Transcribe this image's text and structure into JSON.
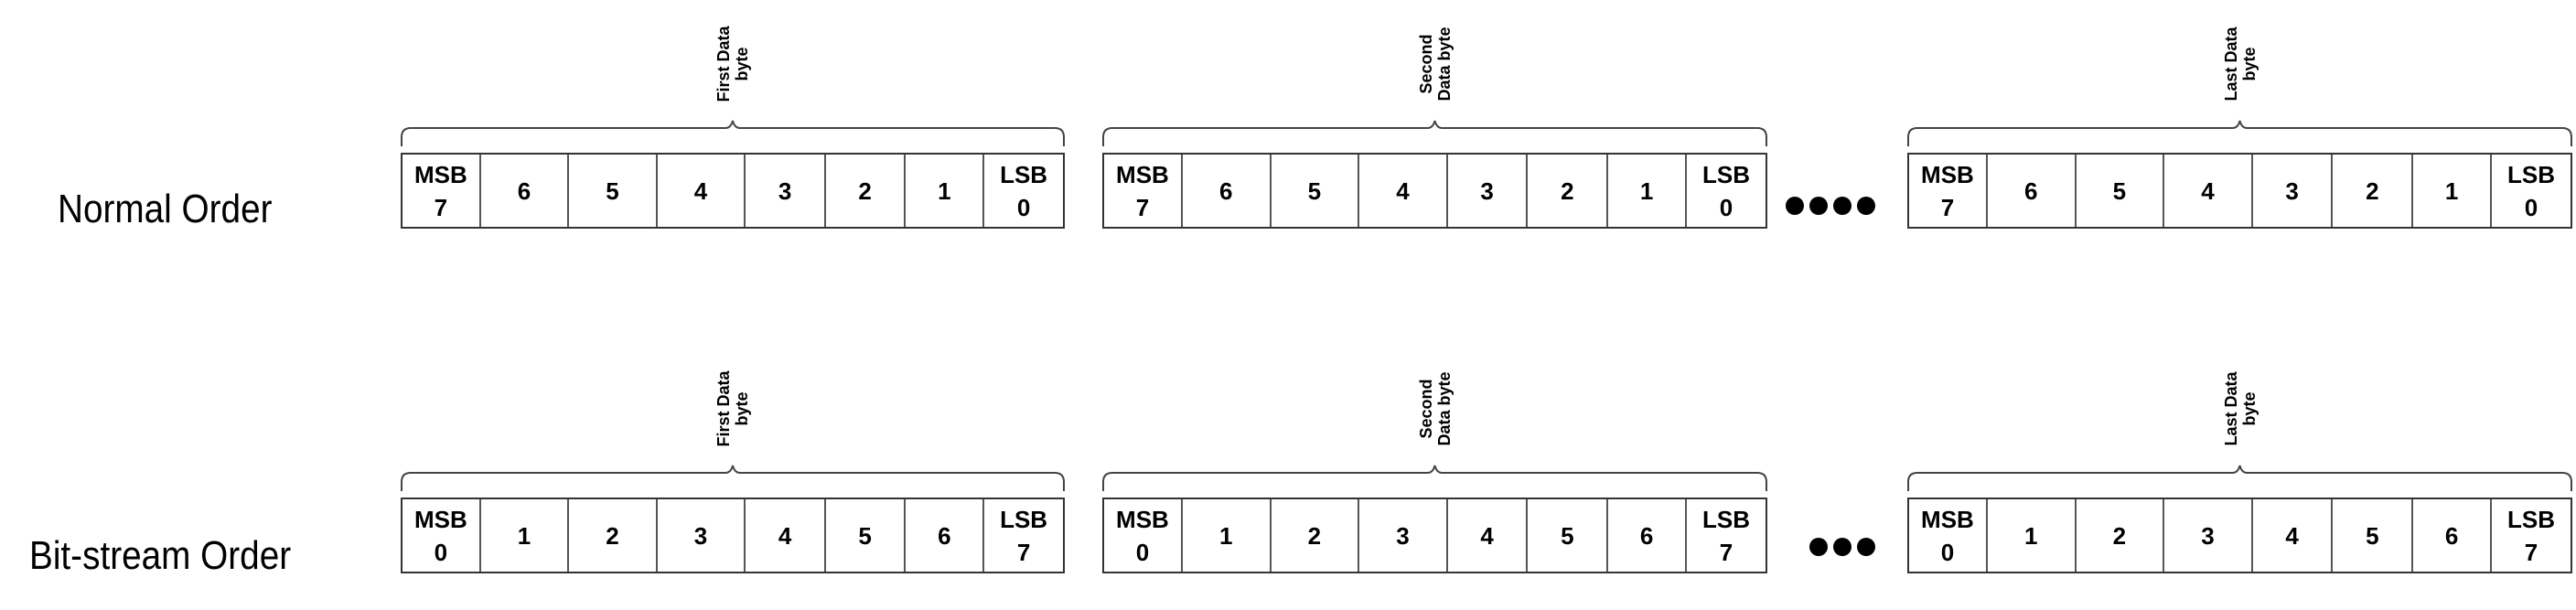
{
  "rows": [
    {
      "title": "Normal Order",
      "ellipsis_count": 4,
      "bytes": [
        {
          "label_line1": "First Data",
          "label_line2": "byte",
          "cells": [
            [
              "MSB",
              "7"
            ],
            [
              "6"
            ],
            [
              "5"
            ],
            [
              "4"
            ],
            [
              "3"
            ],
            [
              "2"
            ],
            [
              "1"
            ],
            [
              "LSB",
              "0"
            ]
          ]
        },
        {
          "label_line1": "Second",
          "label_line2": "Data byte",
          "cells": [
            [
              "MSB",
              "7"
            ],
            [
              "6"
            ],
            [
              "5"
            ],
            [
              "4"
            ],
            [
              "3"
            ],
            [
              "2"
            ],
            [
              "1"
            ],
            [
              "LSB",
              "0"
            ]
          ]
        },
        {
          "label_line1": "Last Data",
          "label_line2": "byte",
          "cells": [
            [
              "MSB",
              "7"
            ],
            [
              "6"
            ],
            [
              "5"
            ],
            [
              "4"
            ],
            [
              "3"
            ],
            [
              "2"
            ],
            [
              "1"
            ],
            [
              "LSB",
              "0"
            ]
          ]
        }
      ]
    },
    {
      "title": "Bit-stream Order",
      "ellipsis_count": 3,
      "bytes": [
        {
          "label_line1": "First Data",
          "label_line2": "byte",
          "cells": [
            [
              "MSB",
              "0"
            ],
            [
              "1"
            ],
            [
              "2"
            ],
            [
              "3"
            ],
            [
              "4"
            ],
            [
              "5"
            ],
            [
              "6"
            ],
            [
              "LSB",
              "7"
            ]
          ]
        },
        {
          "label_line1": "Second",
          "label_line2": "Data byte",
          "cells": [
            [
              "MSB",
              "0"
            ],
            [
              "1"
            ],
            [
              "2"
            ],
            [
              "3"
            ],
            [
              "4"
            ],
            [
              "5"
            ],
            [
              "6"
            ],
            [
              "LSB",
              "7"
            ]
          ]
        },
        {
          "label_line1": "Last Data",
          "label_line2": "byte",
          "cells": [
            [
              "MSB",
              "0"
            ],
            [
              "1"
            ],
            [
              "2"
            ],
            [
              "3"
            ],
            [
              "4"
            ],
            [
              "5"
            ],
            [
              "6"
            ],
            [
              "LSB",
              "7"
            ]
          ]
        }
      ]
    }
  ]
}
